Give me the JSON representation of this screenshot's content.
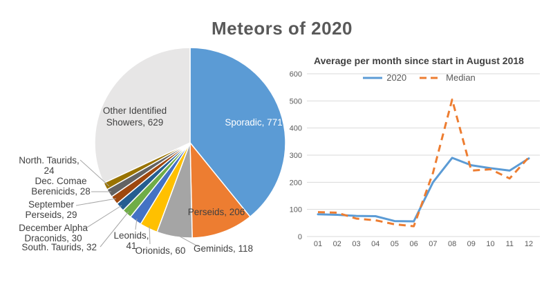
{
  "title": "Meteors of 2020",
  "colors": {
    "grid": "#D9D9D9",
    "axis_text": "#595959",
    "title_text": "#595959",
    "chart_title_text": "#404040",
    "pie_label_text": "#404040",
    "pie_label_inside_light": "#FFFFFF",
    "leader_line": "#A6A6A6",
    "background": "#FFFFFF"
  },
  "chart_data": [
    {
      "type": "pie",
      "title": "Meteors of 2020",
      "segments": [
        {
          "name": "Sporadic",
          "value": 771,
          "label": "Sporadic, 771",
          "color": "#5B9BD5"
        },
        {
          "name": "Perseids",
          "value": 206,
          "label": "Perseids, 206",
          "color": "#ED7D31"
        },
        {
          "name": "Geminids",
          "value": 118,
          "label": "Geminids, 118",
          "color": "#A5A5A5"
        },
        {
          "name": "Orionids",
          "value": 60,
          "label": "Orionids, 60",
          "color": "#FFC000"
        },
        {
          "name": "Leonids",
          "value": 41,
          "label": "Leonids,|41",
          "color": "#4472C4"
        },
        {
          "name": "South. Taurids",
          "value": 32,
          "label": "South. Taurids, 32",
          "color": "#70AD47"
        },
        {
          "name": "December Alpha Draconids",
          "value": 30,
          "label": "December Alpha|Draconids, 30",
          "color": "#255E91"
        },
        {
          "name": "September Perseids",
          "value": 29,
          "label": "September|Perseids, 29",
          "color": "#9E480E"
        },
        {
          "name": "Dec. Comae Berenicids",
          "value": 28,
          "label": "Dec. Comae|Berenicids, 28",
          "color": "#636363"
        },
        {
          "name": "North. Taurids",
          "value": 24,
          "label": "North. Taurids,|24",
          "color": "#997300"
        },
        {
          "name": "Other Identified Showers",
          "value": 629,
          "label": "Other Identified|Showers, 629",
          "color": "#E7E6E6"
        }
      ]
    },
    {
      "type": "line",
      "title": "Average per month since start in August 2018",
      "categories": [
        "01",
        "02",
        "03",
        "04",
        "05",
        "06",
        "07",
        "08",
        "09",
        "10",
        "11",
        "12"
      ],
      "series": [
        {
          "name": "2020",
          "color": "#5B9BD5",
          "style": "solid",
          "values": [
            82,
            80,
            76,
            75,
            57,
            56,
            200,
            290,
            263,
            252,
            243,
            288
          ]
        },
        {
          "name": "Median",
          "color": "#ED7D31",
          "style": "dashed",
          "values": [
            90,
            88,
            66,
            60,
            45,
            38,
            235,
            505,
            243,
            248,
            214,
            292
          ]
        }
      ],
      "ylim": [
        0,
        600
      ],
      "ytick_step": 100,
      "grid": "horizontal",
      "legend_position": "top"
    }
  ]
}
